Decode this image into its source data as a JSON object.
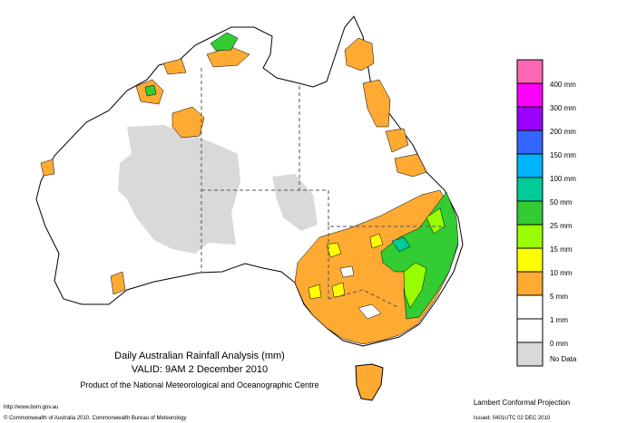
{
  "map": {
    "title": "Daily Australian Rainfall Analysis (mm)",
    "valid": "VALID: 9AM  2 December 2010",
    "product": "Product of the National Meteorological and Oceanographic Centre",
    "url": "http://www.bom.gov.au",
    "copyright": "© Commonwealth of Australia 2010, Commonwealth Bureau of Meteorology",
    "projection": "Lambert Conformal Projection",
    "issued": "Issued: 0401UTC 02 DEC 2010"
  },
  "legend": {
    "colors": [
      "#ff66b3",
      "#ff00ff",
      "#9900ff",
      "#3366ff",
      "#00b3ff",
      "#00cc99",
      "#33cc33",
      "#99ff00",
      "#ffff00",
      "#ffaa33",
      "#ffffff",
      "#ffffff",
      "#d9d9d9"
    ],
    "labels": [
      "400 mm",
      "300 mm",
      "200 mm",
      "150 mm",
      "100 mm",
      "50 mm",
      "25 mm",
      "15 mm",
      "10 mm",
      "5 mm",
      "1 mm",
      "0 mm"
    ],
    "no_data": "No Data"
  }
}
